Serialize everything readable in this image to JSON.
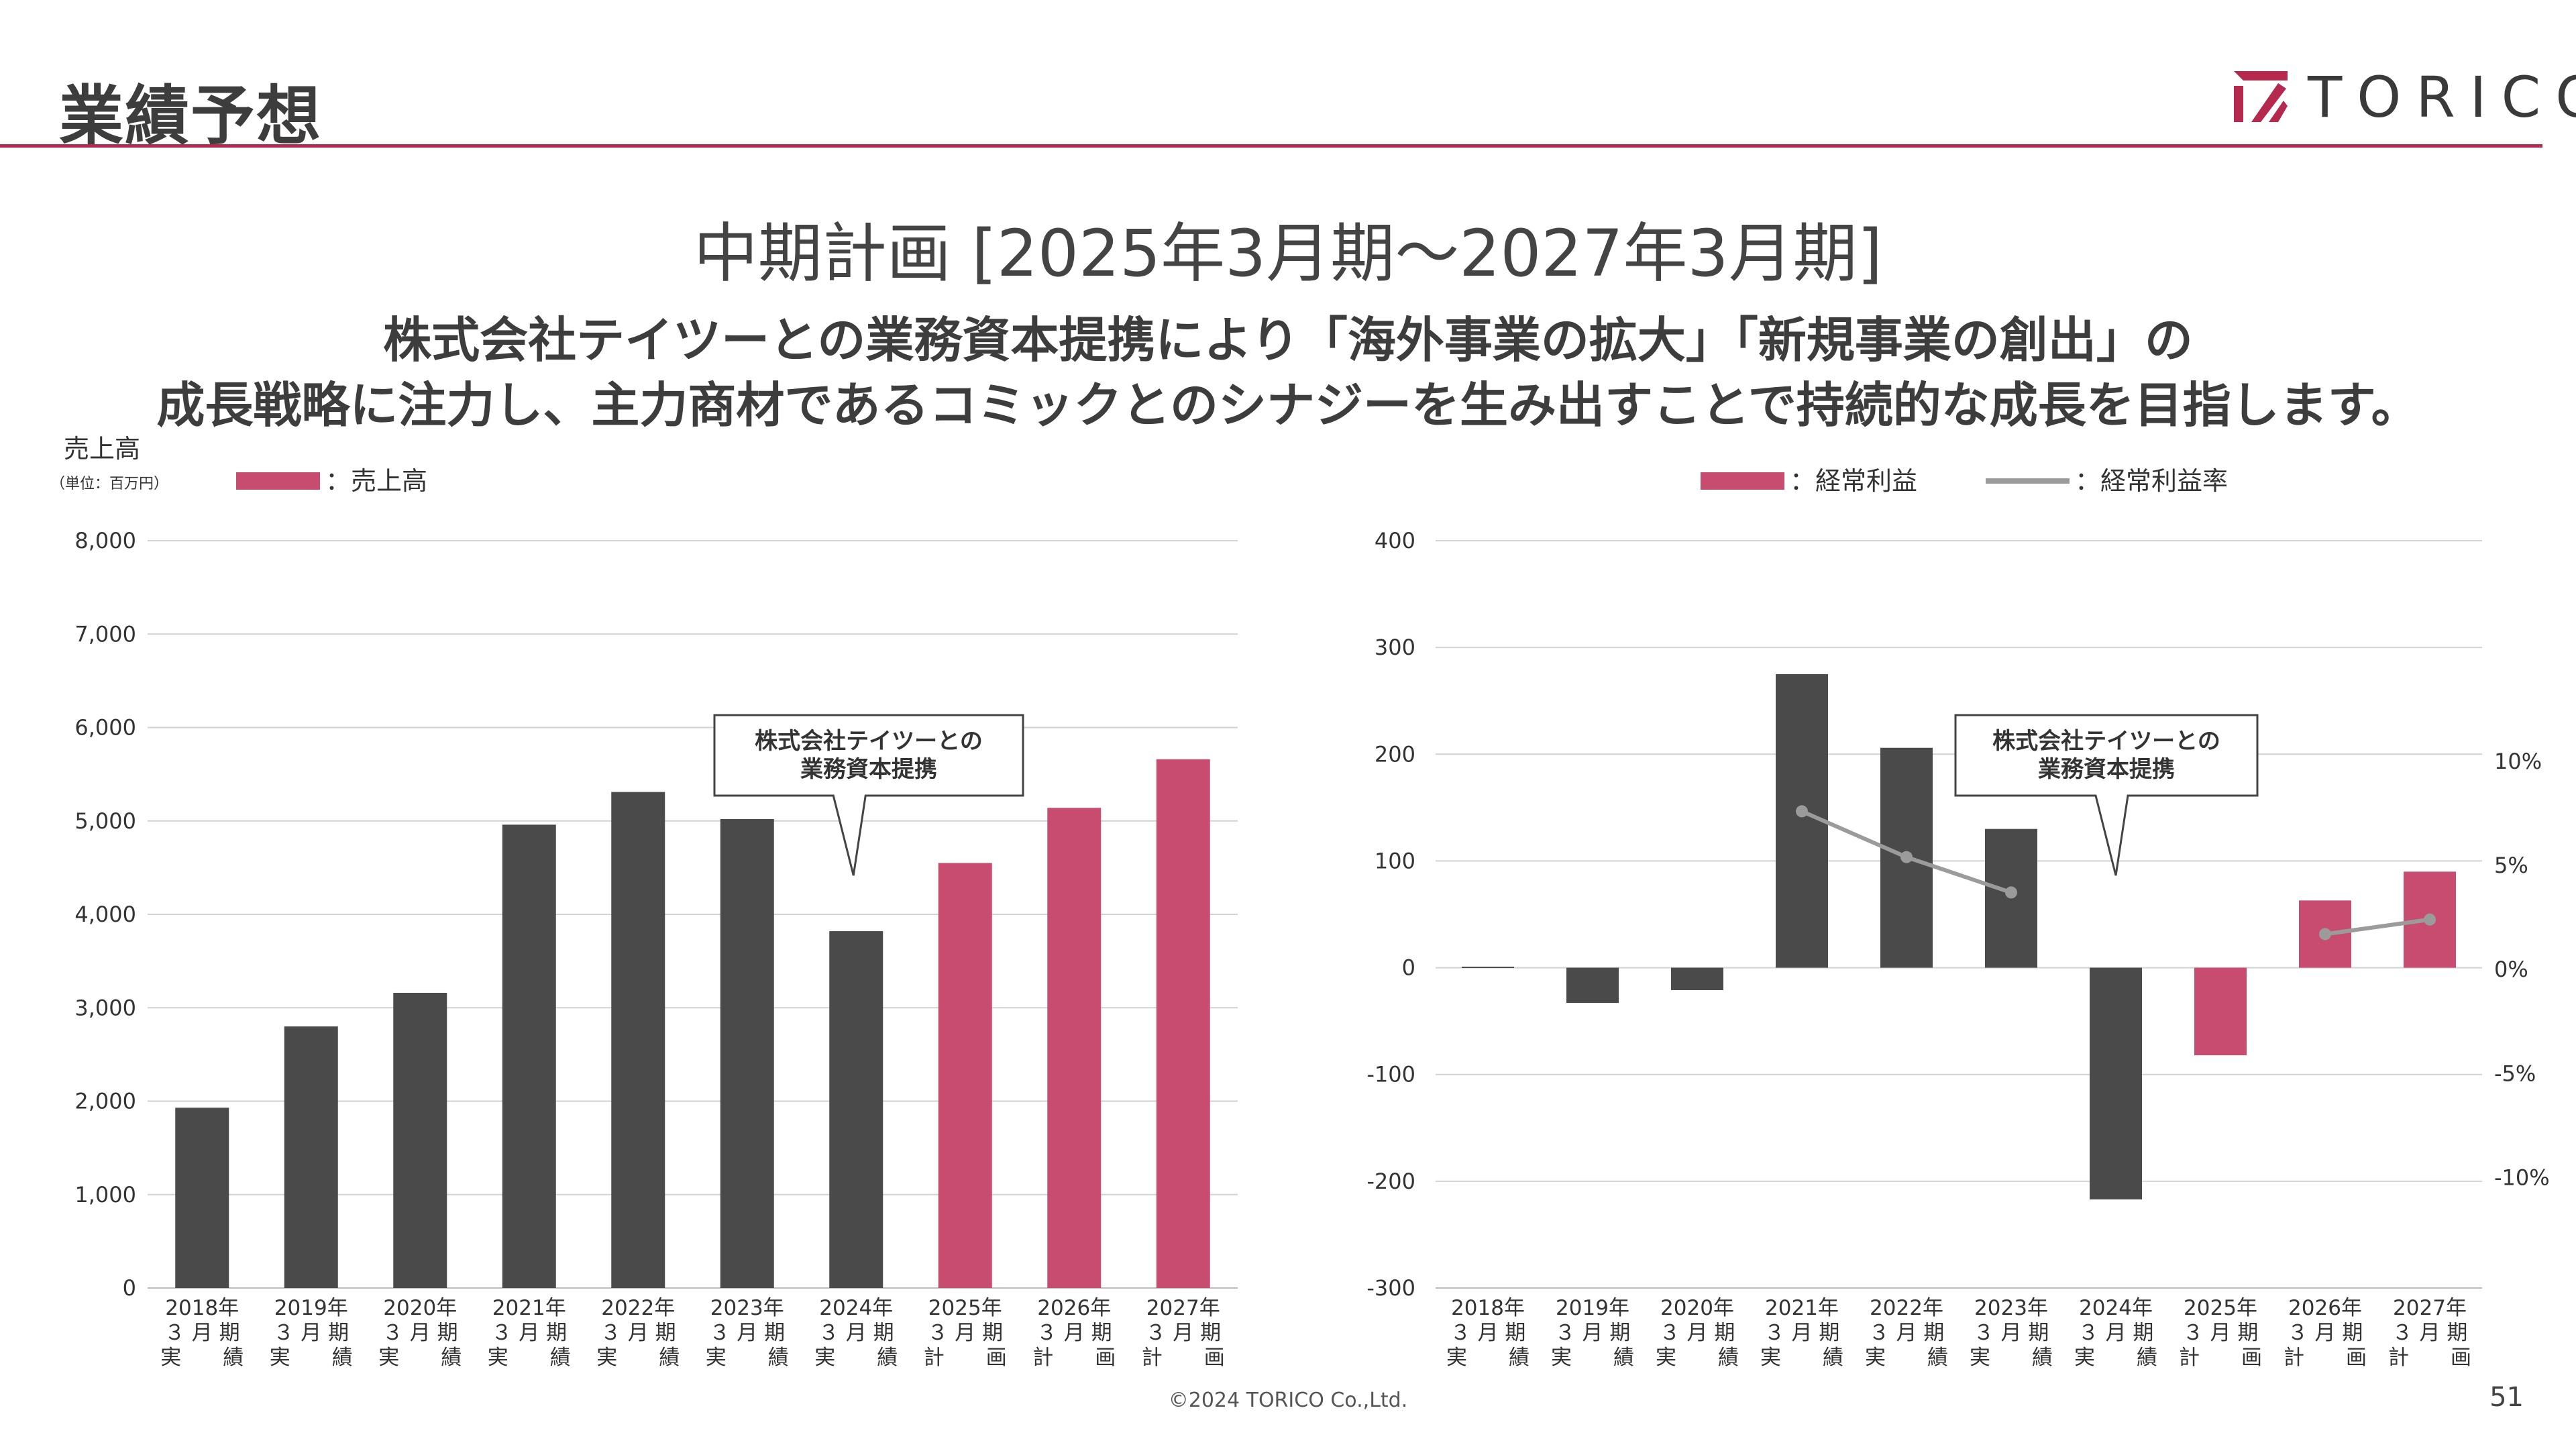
{
  "header": {
    "title": "業績予想",
    "logo_text": "TORICO"
  },
  "headline": {
    "title": "中期計画 [2025年3月期〜2027年3月期]",
    "subtitle_line1": "株式会社テイツーとの業務資本提携により「海外事業の拡大」「新規事業の創出」の",
    "subtitle_line2": "成長戦略に注力し、主力商材であるコミックとのシナジーを生み出すことで持続的な成長を目指します。"
  },
  "footer": {
    "copyright": "©2024 TORICO Co.,Ltd.",
    "page_number": "51"
  },
  "colors": {
    "actual": "#4a4a4a",
    "plan": "#c84c70",
    "rate_line": "#9b9b9b",
    "accent": "#b5294e"
  },
  "chart_data": [
    {
      "type": "bar",
      "title": "売上高",
      "unit_note": "（単位：百万円）",
      "legend": [
        {
          "name": "：売上高",
          "color": "#c84c70",
          "kind": "bar"
        }
      ],
      "ylim": [
        0,
        8000
      ],
      "y_ticks": [
        "0",
        "1,000",
        "2,000",
        "3,000",
        "4,000",
        "5,000",
        "6,000",
        "7,000",
        "8,000"
      ],
      "categories": [
        {
          "year": "2018年",
          "period": "３ 月 期",
          "kind": "実　　績"
        },
        {
          "year": "2019年",
          "period": "３ 月 期",
          "kind": "実　　績"
        },
        {
          "year": "2020年",
          "period": "３ 月 期",
          "kind": "実　　績"
        },
        {
          "year": "2021年",
          "period": "３ 月 期",
          "kind": "実　　績"
        },
        {
          "year": "2022年",
          "period": "３ 月 期",
          "kind": "実　　績"
        },
        {
          "year": "2023年",
          "period": "３ 月 期",
          "kind": "実　　績"
        },
        {
          "year": "2024年",
          "period": "３ 月 期",
          "kind": "実　　績"
        },
        {
          "year": "2025年",
          "period": "３ 月 期",
          "kind": "計　　画"
        },
        {
          "year": "2026年",
          "period": "３ 月 期",
          "kind": "計　　画"
        },
        {
          "year": "2027年",
          "period": "３ 月 期",
          "kind": "計　　画"
        }
      ],
      "values": [
        1930,
        2800,
        3160,
        4960,
        5310,
        5020,
        3820,
        4550,
        5140,
        5660
      ],
      "is_plan": [
        false,
        false,
        false,
        false,
        false,
        false,
        false,
        true,
        true,
        true
      ],
      "callout": {
        "line1": "株式会社テイツーとの",
        "line2": "業務資本提携",
        "points_to": "2024年"
      },
      "grid": true
    },
    {
      "type": "bar+line",
      "legend": [
        {
          "name": "：経常利益",
          "color": "#c84c70",
          "kind": "bar"
        },
        {
          "name": "：経常利益率",
          "color": "#9b9b9b",
          "kind": "line"
        }
      ],
      "ylim": [
        -300,
        400
      ],
      "y_ticks": [
        "-300",
        "-200",
        "-100",
        "0",
        "100",
        "200",
        "300",
        "400"
      ],
      "y2lim": [
        -15.3,
        20.6
      ],
      "y2_ticks": [
        {
          "label": "-10%",
          "value": -10
        },
        {
          "label": "-5%",
          "value": -5
        },
        {
          "label": "0%",
          "value": 0
        },
        {
          "label": "5%",
          "value": 5
        },
        {
          "label": "10%",
          "value": 10
        }
      ],
      "categories": [
        {
          "year": "2018年",
          "period": "３ 月 期",
          "kind": "実　　績"
        },
        {
          "year": "2019年",
          "period": "３ 月 期",
          "kind": "実　　績"
        },
        {
          "year": "2020年",
          "period": "３ 月 期",
          "kind": "実　　績"
        },
        {
          "year": "2021年",
          "period": "３ 月 期",
          "kind": "実　　績"
        },
        {
          "year": "2022年",
          "period": "３ 月 期",
          "kind": "実　　績"
        },
        {
          "year": "2023年",
          "period": "３ 月 期",
          "kind": "実　　績"
        },
        {
          "year": "2024年",
          "period": "３ 月 期",
          "kind": "実　　績"
        },
        {
          "year": "2025年",
          "period": "３ 月 期",
          "kind": "計　　画"
        },
        {
          "year": "2026年",
          "period": "３ 月 期",
          "kind": "計　　画"
        },
        {
          "year": "2027年",
          "period": "３ 月 期",
          "kind": "計　　画"
        }
      ],
      "values": [
        1,
        -33,
        -21,
        275,
        206,
        130,
        -217,
        -82,
        63,
        90
      ],
      "is_plan": [
        false,
        false,
        false,
        false,
        false,
        false,
        false,
        true,
        true,
        true
      ],
      "rate_percent": [
        null,
        null,
        null,
        7.6,
        5.4,
        3.7,
        null,
        null,
        1.7,
        2.4
      ],
      "callout": {
        "line1": "株式会社テイツーとの",
        "line2": "業務資本提携",
        "points_to": "2024年"
      },
      "grid": true
    }
  ]
}
